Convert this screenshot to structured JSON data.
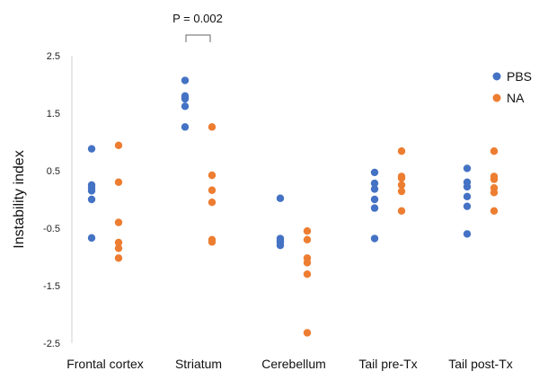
{
  "chart_data": {
    "type": "scatter",
    "ylabel": "Instability index",
    "ylim": [
      -2.5,
      2.5
    ],
    "yticks": [
      "2.5",
      "1.5",
      "0.5",
      "-0.5",
      "-1.5",
      "-2.5"
    ],
    "grid": false,
    "legend_placement": "top-right",
    "categories": [
      "Frontal cortex",
      "Striatum",
      "Cerebellum",
      "Tail pre-Tx",
      "Tail post-Tx"
    ],
    "series": [
      {
        "name": "PBS",
        "color": "#4472C4",
        "values": [
          [
            0.88,
            0.25,
            0.2,
            0.15,
            0.0,
            -0.67
          ],
          [
            2.07,
            1.8,
            1.78,
            1.75,
            1.62,
            1.26
          ],
          [
            0.02,
            -0.68,
            -0.72,
            -0.75,
            -0.8
          ],
          [
            0.47,
            0.28,
            0.18,
            0.0,
            -0.15,
            -0.68
          ],
          [
            0.54,
            0.3,
            0.22,
            0.05,
            -0.12,
            -0.6
          ]
        ]
      },
      {
        "name": "NA",
        "color": "#ED7D31",
        "values": [
          [
            0.94,
            0.3,
            -0.4,
            -0.75,
            -0.85,
            -1.02
          ],
          [
            1.26,
            0.42,
            0.16,
            -0.05,
            -0.7,
            -0.74
          ],
          [
            -0.55,
            -0.7,
            -1.02,
            -1.1,
            -1.3,
            -2.32
          ],
          [
            0.84,
            0.4,
            0.37,
            0.25,
            0.14,
            -0.2
          ],
          [
            0.84,
            0.4,
            0.35,
            0.2,
            0.12,
            -0.2
          ]
        ]
      }
    ],
    "annotations": [
      {
        "text": "P = 0.002",
        "category": "Striatum"
      }
    ]
  }
}
